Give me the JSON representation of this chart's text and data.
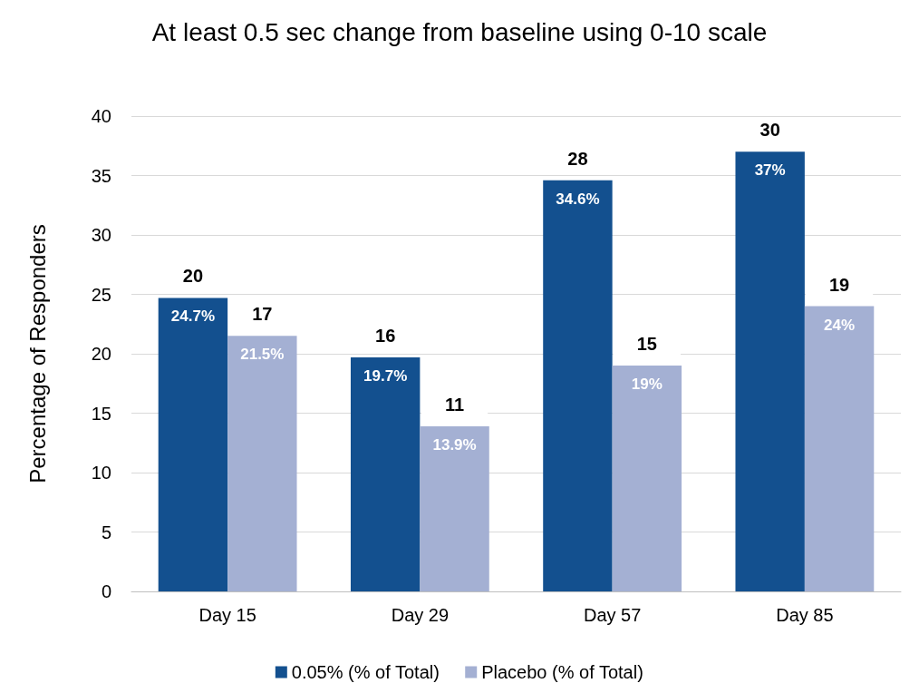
{
  "chart_data": {
    "type": "bar",
    "title": "At least 0.5 sec change from baseline using 0-10 scale",
    "ylabel": "Percentage of Responders",
    "categories": [
      "Day 15",
      "Day 29",
      "Day 57",
      "Day 85"
    ],
    "series": [
      {
        "name": "0.05% (% of Total)",
        "color": "#13508f",
        "values": [
          24.7,
          19.7,
          34.6,
          37
        ],
        "value_labels": [
          "24.7%",
          "19.7%",
          "34.6%",
          "37%"
        ]
      },
      {
        "name": "Placebo (% of Total)",
        "color": "#a4b0d3",
        "values": [
          21.5,
          13.9,
          19,
          24
        ],
        "value_labels": [
          "21.5%",
          "13.9%",
          "19%",
          "24%"
        ]
      }
    ],
    "annotations": [
      {
        "text": "20",
        "x": "Day 15",
        "y": 24.7
      },
      {
        "text": "16",
        "x": "Day 29",
        "y": 19.7
      },
      {
        "text": "28",
        "x": "Day 57",
        "y": 34.6
      },
      {
        "text": "30",
        "x": "Day 85",
        "y": 37
      },
      {
        "text": "17",
        "x": "Day 15",
        "y": 21.5
      },
      {
        "text": "11",
        "x": "Day 29",
        "y": 13.9
      },
      {
        "text": "15",
        "x": "Day 57",
        "y": 19
      },
      {
        "text": "19",
        "x": "Day 85",
        "y": 24
      }
    ],
    "ylim": [
      0,
      40
    ],
    "yticks": [
      0,
      5,
      10,
      15,
      20,
      25,
      30,
      35,
      40
    ],
    "grid": "y",
    "legend": "bottom"
  }
}
